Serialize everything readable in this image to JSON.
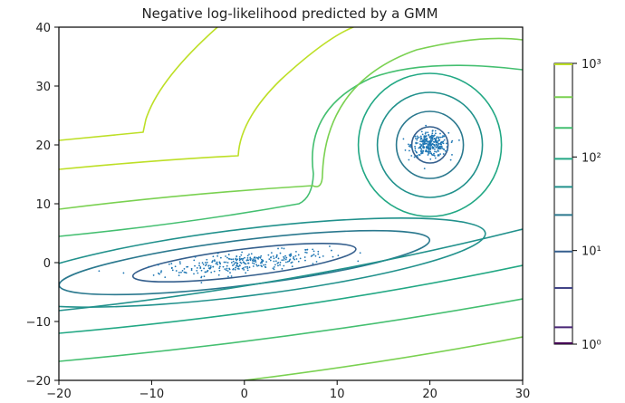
{
  "chart_data": {
    "type": "contour",
    "title": "Negative log-likelihood predicted by a GMM",
    "xlabel": "",
    "ylabel": "",
    "xlim": [
      -20,
      30
    ],
    "ylim": [
      -20,
      40
    ],
    "x_ticks": [
      -20,
      -10,
      0,
      10,
      20,
      30
    ],
    "y_ticks": [
      -20,
      -10,
      0,
      10,
      20,
      30,
      40
    ],
    "x_tick_labels": [
      "−20",
      "−10",
      "0",
      "10",
      "20",
      "30"
    ],
    "y_tick_labels": [
      "−20",
      "−10",
      "0",
      "10",
      "20",
      "30",
      "40"
    ],
    "scale": "log",
    "grid": false,
    "components": [
      {
        "mean": [
          0,
          0
        ],
        "shape": "elongated ellipse",
        "orientation": "tilted upward to the right"
      },
      {
        "mean": [
          20,
          20
        ],
        "shape": "circular"
      }
    ],
    "colorbar": {
      "scale": "log",
      "range": [
        1,
        1000
      ],
      "tick_labels": [
        "10⁰",
        "10¹",
        "10²",
        "10³"
      ],
      "tick_values": [
        1,
        10,
        100,
        1000
      ],
      "level_colors": [
        "#440154",
        "#482475",
        "#414487",
        "#355f8d",
        "#2a788e",
        "#21918c",
        "#22a884",
        "#44bf70",
        "#7ad151",
        "#bddf26"
      ],
      "level_positions": [
        0.06,
        0.2,
        0.33,
        0.46,
        0.56,
        0.66,
        0.77,
        0.88
      ]
    },
    "levels": [
      {
        "color": "#355f8d"
      },
      {
        "color": "#2a788e"
      },
      {
        "color": "#21918c"
      },
      {
        "color": "#22a884"
      },
      {
        "color": "#44bf70"
      },
      {
        "color": "#7ad151"
      },
      {
        "color": "#bddf26"
      }
    ],
    "scatter": {
      "color": "#1f77b4",
      "clusters": [
        {
          "center": [
            0,
            0
          ],
          "spread_x": 4.5,
          "spread_y": 0.8,
          "slope": 0.15,
          "count": 300
        },
        {
          "center": [
            20,
            20
          ],
          "spread_x": 1,
          "spread_y": 1,
          "slope": 0,
          "count": 300
        }
      ]
    }
  }
}
